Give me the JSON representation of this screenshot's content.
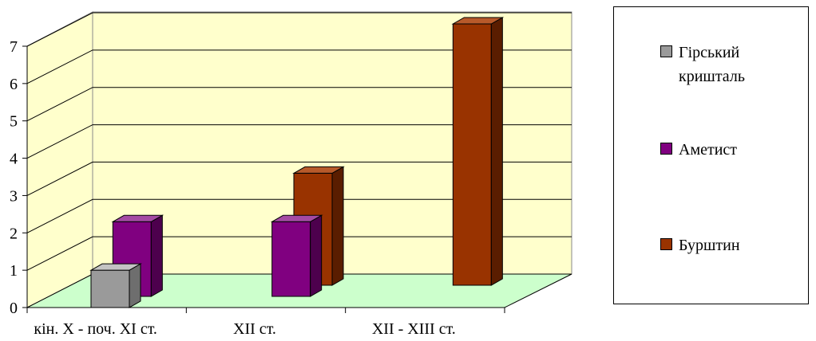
{
  "chart_data": {
    "type": "bar",
    "title": "",
    "xlabel": "",
    "ylabel": "",
    "categories": [
      "кін. Х - поч. ХІ ст.",
      "ХІІ ст.",
      "ХІІ - ХІІІ ст."
    ],
    "y_ticks": [
      "0",
      "1",
      "2",
      "3",
      "4",
      "5",
      "6",
      "7"
    ],
    "ylim": [
      0,
      7
    ],
    "grid": true,
    "legend_position": "right",
    "series": [
      {
        "name": "Гірський кришталь",
        "color": "#9a9a9a",
        "side": "#6e6e6e",
        "top": "#c4c4c4",
        "values": [
          1,
          0,
          0
        ]
      },
      {
        "name": "Аметист",
        "color": "#800080",
        "side": "#4d004d",
        "top": "#a44aa4",
        "values": [
          2,
          2,
          0
        ]
      },
      {
        "name": "Бурштин",
        "color": "#993300",
        "side": "#5a1d00",
        "top": "#b85a2a",
        "values": [
          0,
          3,
          7
        ]
      }
    ]
  },
  "style": {
    "wall_color": "#ffffcc",
    "floor_color": "#ccffcc",
    "gridline_color": "#000000"
  }
}
